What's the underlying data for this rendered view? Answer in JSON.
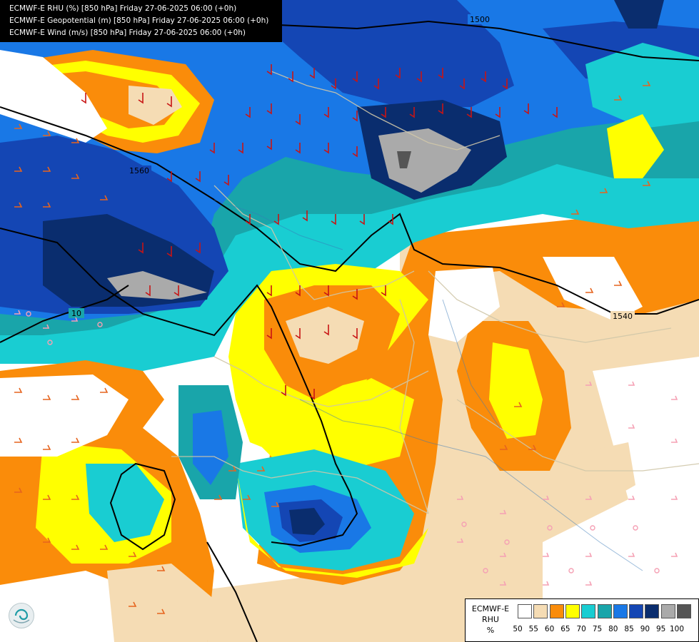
{
  "header": {
    "lines": [
      "ECMWF-E RHU (%) [850 hPa] Friday 27-06-2025 06:00 (+0h)",
      "ECMWF-E Geopotential (m) [850 hPa] Friday 27-06-2025 06:00 (+0h)",
      "ECMWF-E Wind (m/s) [850 hPa] Friday 27-06-2025 06:00 (+0h)"
    ]
  },
  "contours": {
    "labels": [
      "1500",
      "1560",
      "1540",
      "10"
    ]
  },
  "legend": {
    "model": "ECMWF-E",
    "variable": "RHU",
    "unit": "%",
    "ticks": [
      "50",
      "55",
      "60",
      "65",
      "70",
      "75",
      "80",
      "85",
      "90",
      "95",
      "100"
    ],
    "colors": [
      "#ffffff",
      "#f5dcb4",
      "#fa8c0a",
      "#ffff00",
      "#19cdd2",
      "#19a5aa",
      "#1978e6",
      "#1446b4",
      "#0a2d6e",
      "#aaaaaa",
      "#555555"
    ]
  }
}
